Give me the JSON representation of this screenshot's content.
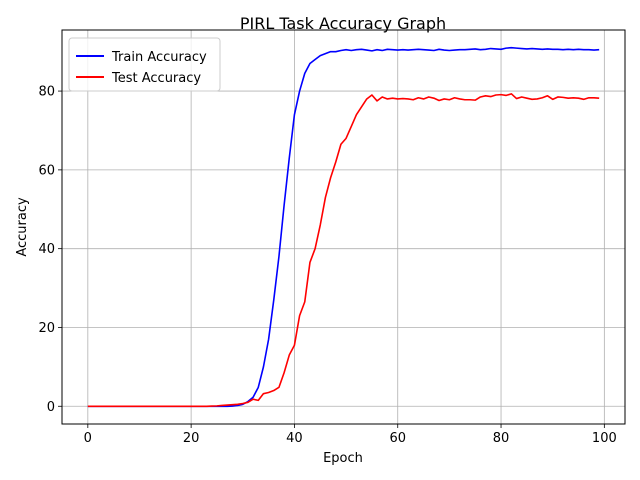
{
  "chart_data": {
    "type": "line",
    "title": "PIRL Task Accuracy Graph",
    "xlabel": "Epoch",
    "ylabel": "Accuracy",
    "xlim": [
      -5,
      104
    ],
    "ylim": [
      -4.5,
      95.5
    ],
    "xticks": [
      0,
      20,
      40,
      60,
      80,
      100
    ],
    "yticks": [
      0,
      20,
      40,
      60,
      80
    ],
    "grid": true,
    "legend_position": "top-left",
    "series": [
      {
        "name": "Train Accuracy",
        "color": "#0000ff",
        "values": [
          0,
          0,
          0,
          0,
          0,
          0,
          0,
          0,
          0,
          0,
          0,
          0,
          0,
          0,
          0,
          0,
          0,
          0,
          0,
          0,
          0,
          0,
          0,
          0,
          0,
          0,
          0,
          0,
          0.05,
          0.2,
          0.5,
          1.2,
          2.3,
          4.8,
          10,
          17,
          27,
          38,
          51,
          63,
          74,
          80,
          84.5,
          87,
          88,
          89,
          89.5,
          90,
          90,
          90.3,
          90.5,
          90.3,
          90.5,
          90.6,
          90.4,
          90.2,
          90.5,
          90.3,
          90.6,
          90.5,
          90.4,
          90.5,
          90.4,
          90.5,
          90.6,
          90.5,
          90.4,
          90.3,
          90.6,
          90.4,
          90.3,
          90.4,
          90.5,
          90.5,
          90.6,
          90.7,
          90.5,
          90.6,
          90.8,
          90.7,
          90.6,
          90.9,
          91,
          90.9,
          90.8,
          90.7,
          90.8,
          90.7,
          90.6,
          90.7,
          90.6,
          90.6,
          90.5,
          90.6,
          90.5,
          90.6,
          90.5,
          90.5,
          90.4,
          90.5
        ]
      },
      {
        "name": "Test Accuracy",
        "color": "#ff0000",
        "values": [
          0,
          0,
          0,
          0,
          0,
          0,
          0,
          0,
          0,
          0,
          0,
          0,
          0,
          0,
          0,
          0,
          0,
          0,
          0,
          0,
          0,
          0,
          0,
          0,
          0.05,
          0.1,
          0.2,
          0.3,
          0.4,
          0.5,
          0.7,
          1,
          1.8,
          1.5,
          3.2,
          3.5,
          4,
          4.8,
          8.5,
          13,
          15.5,
          23,
          26.5,
          36.5,
          40,
          46,
          53,
          58,
          62,
          66.5,
          68,
          71,
          74,
          76,
          78,
          79,
          77.5,
          78.5,
          78,
          78.2,
          78,
          78.1,
          78,
          77.8,
          78.3,
          78,
          78.5,
          78.2,
          77.6,
          78,
          77.8,
          78.3,
          78,
          77.8,
          77.8,
          77.7,
          78.5,
          78.8,
          78.6,
          79,
          79.1,
          78.9,
          79.3,
          78.1,
          78.5,
          78.2,
          77.9,
          78,
          78.3,
          78.8,
          77.9,
          78.5,
          78.4,
          78.2,
          78.3,
          78.2,
          77.9,
          78.3,
          78.3,
          78.2
        ]
      }
    ]
  }
}
